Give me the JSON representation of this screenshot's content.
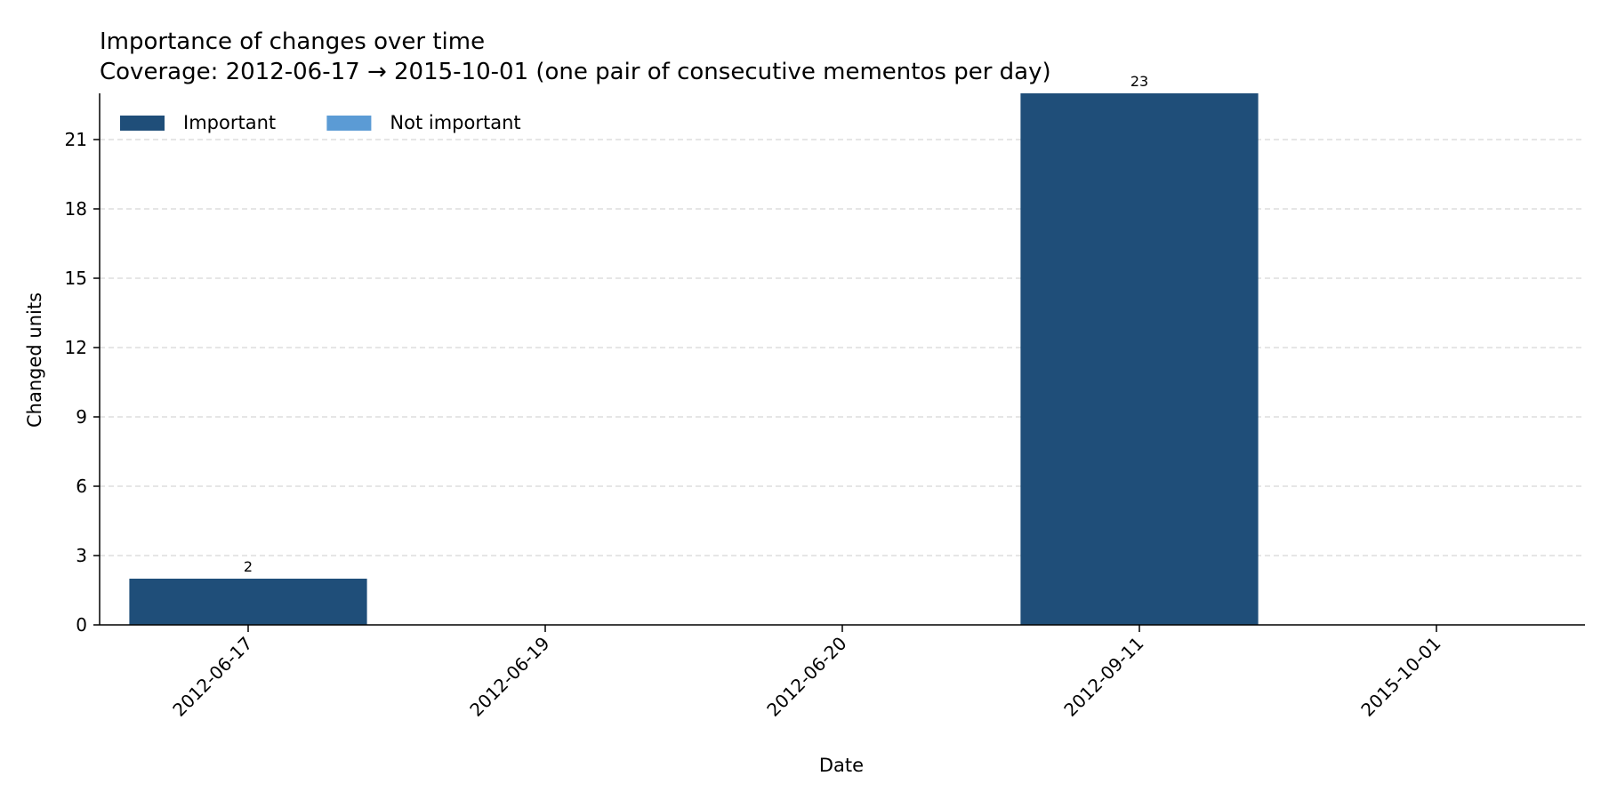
{
  "chart_data": {
    "type": "bar",
    "title": "Importance of changes over time",
    "subtitle": "Coverage: 2012-06-17 → 2015-10-01 (one pair of consecutive mementos per day)",
    "xlabel": "Date",
    "ylabel": "Changed units",
    "categories": [
      "2012-06-17",
      "2012-06-19",
      "2012-06-20",
      "2012-09-11",
      "2015-10-01"
    ],
    "series": [
      {
        "name": "Important",
        "values": [
          2,
          0,
          0,
          23,
          0
        ],
        "color": "#1f4e79"
      },
      {
        "name": "Not important",
        "values": [
          0,
          0,
          0,
          0,
          0
        ],
        "color": "#5b9bd5"
      }
    ],
    "data_labels": [
      "2",
      "",
      "",
      "23",
      ""
    ],
    "ylim": [
      0,
      23
    ],
    "yticks": [
      0,
      3,
      6,
      9,
      12,
      15,
      18,
      21
    ],
    "stacked": true,
    "grid": "y-dashed",
    "legend_position": "top-left",
    "legend_columns": 2
  }
}
